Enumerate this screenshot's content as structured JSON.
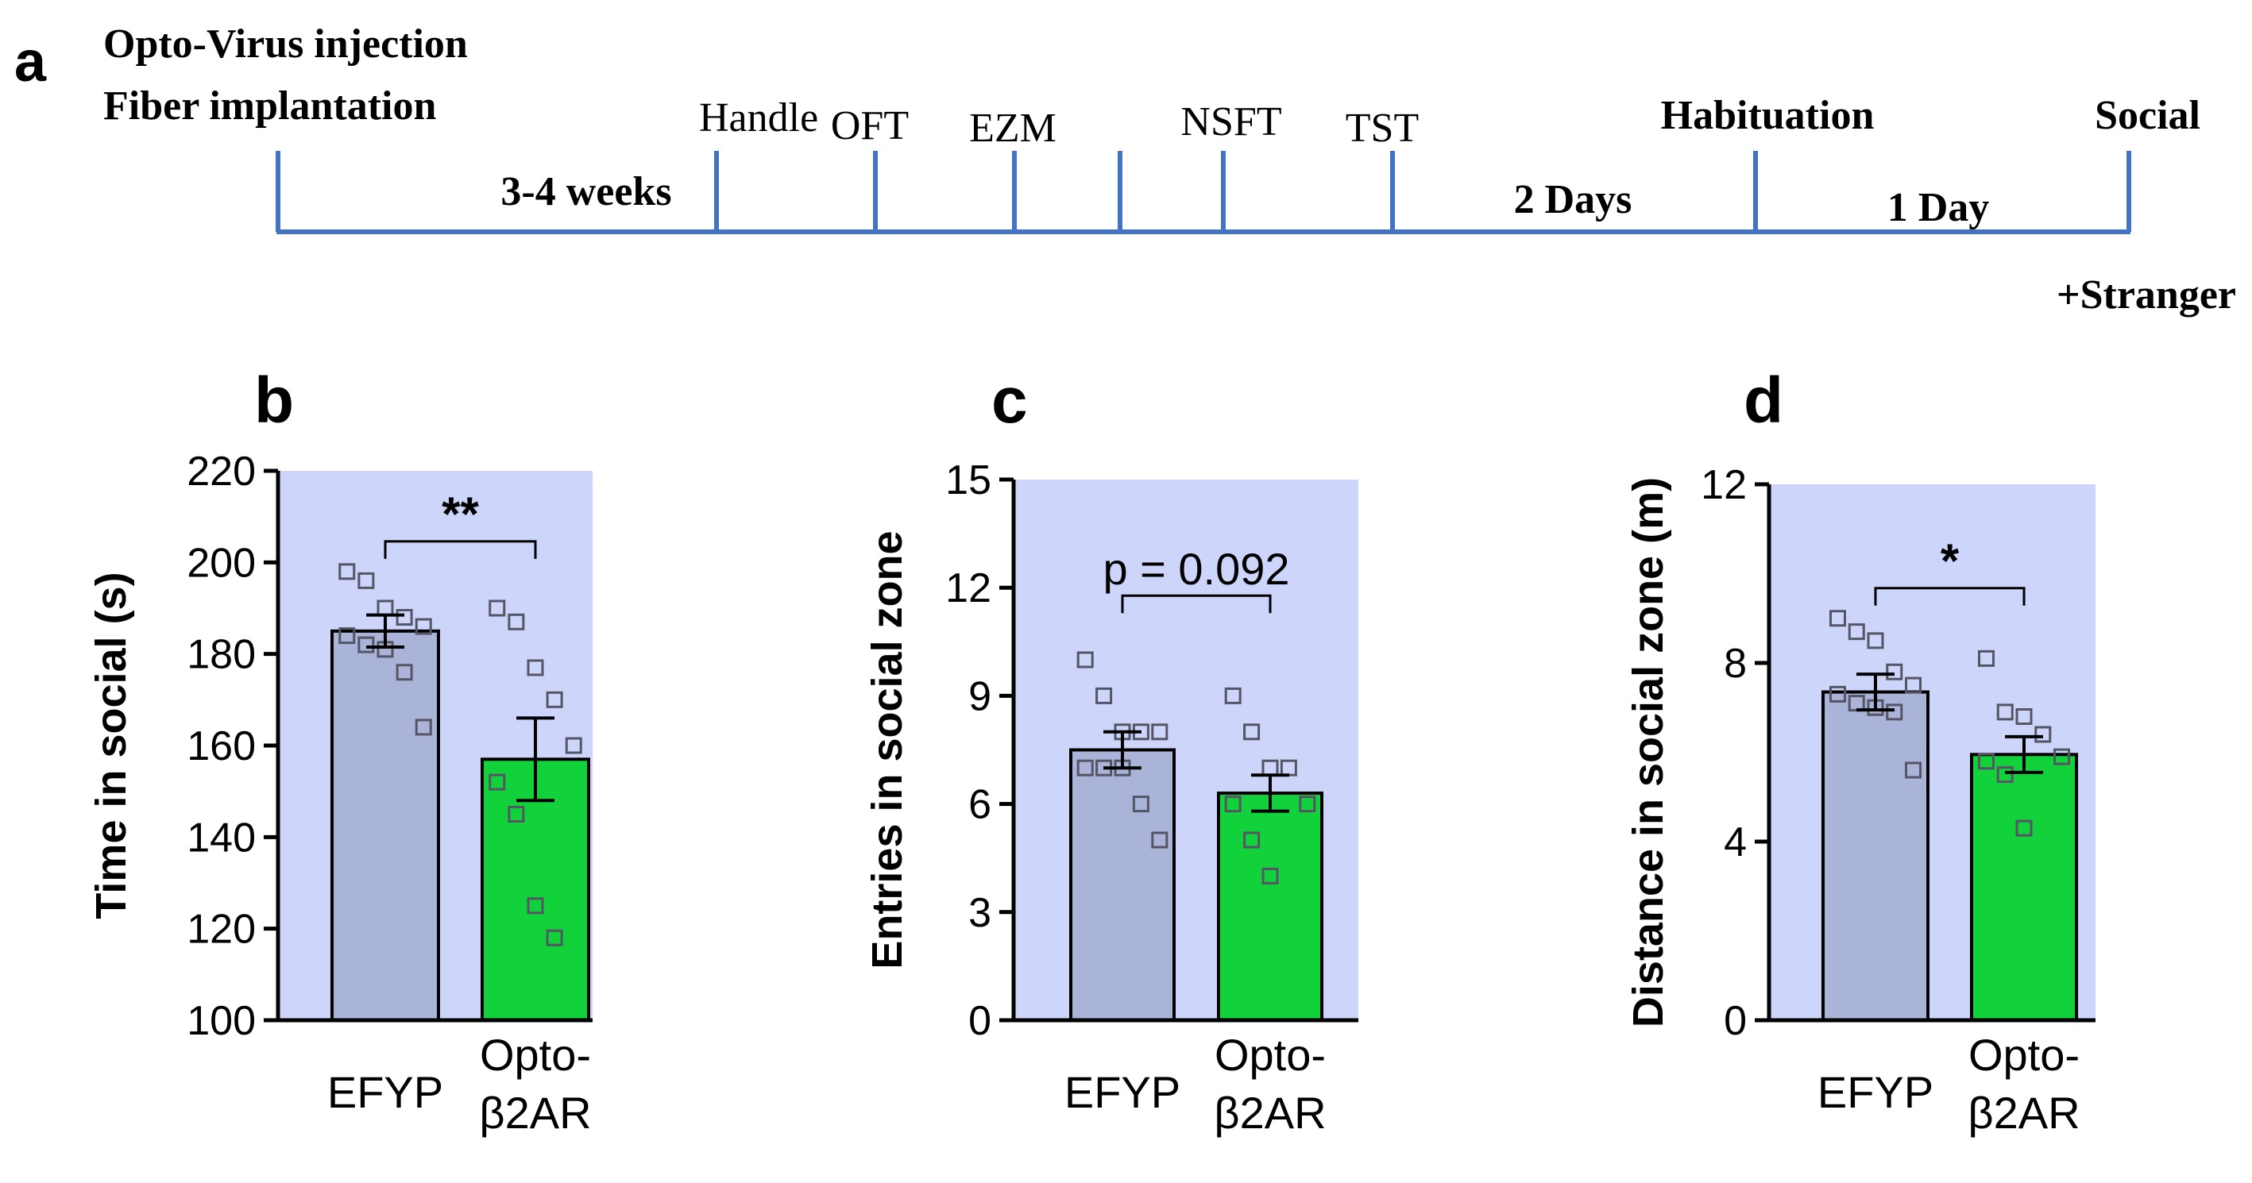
{
  "timeline": {
    "panel_letter": "a",
    "title_line1": "Opto-Virus injection",
    "title_line2": "Fiber implantation",
    "events": [
      {
        "label": "Handle",
        "bold": false
      },
      {
        "label": "OFT",
        "bold": false
      },
      {
        "label": "EZM",
        "bold": false
      },
      {
        "label": "NSFT",
        "bold": false
      },
      {
        "label": "TST",
        "bold": false
      },
      {
        "label": "Habituation",
        "bold": true
      },
      {
        "label": "Social",
        "bold": true
      }
    ],
    "durations": [
      "3-4 weeks",
      "2 Days",
      "1 Day"
    ],
    "note": "+Stranger",
    "line_color": "#4472c4"
  },
  "colors": {
    "panel_bg": "#cdd6fa",
    "efyp_bar": "#aab4d8",
    "opto_bar": "#11d23a",
    "axis": "#000000",
    "marker": "#555566"
  },
  "chart_data": [
    {
      "panel": "b",
      "type": "bar",
      "categories": [
        "EFYP",
        "Opto-β2AR"
      ],
      "category_lines": [
        [
          "EFYP"
        ],
        [
          "Opto-",
          "β2AR"
        ]
      ],
      "values": [
        185,
        157
      ],
      "sem": [
        3.5,
        9
      ],
      "points": [
        [
          198,
          196,
          190,
          188,
          186,
          184,
          182,
          181,
          176,
          164
        ],
        [
          190,
          187,
          177,
          170,
          160,
          152,
          145,
          125,
          118
        ]
      ],
      "ylabel": "Time in social (s)",
      "ylim": [
        100,
        220
      ],
      "yticks": [
        100,
        120,
        140,
        160,
        180,
        200,
        220
      ],
      "significance": "**"
    },
    {
      "panel": "c",
      "type": "bar",
      "categories": [
        "EFYP",
        "Opto-β2AR"
      ],
      "category_lines": [
        [
          "EFYP"
        ],
        [
          "Opto-",
          "β2AR"
        ]
      ],
      "values": [
        7.5,
        6.3
      ],
      "sem": [
        0.5,
        0.5
      ],
      "points": [
        [
          10,
          9,
          8,
          8,
          8,
          7,
          7,
          7,
          6,
          5
        ],
        [
          9,
          8,
          7,
          7,
          6,
          6,
          5,
          4
        ]
      ],
      "ylabel": "Entries in social zone",
      "ylim": [
        0,
        15
      ],
      "yticks": [
        0,
        3,
        6,
        9,
        12,
        15
      ],
      "significance": "p = 0.092"
    },
    {
      "panel": "d",
      "type": "bar",
      "categories": [
        "EFYP",
        "Opto-β2AR"
      ],
      "category_lines": [
        [
          "EFYP"
        ],
        [
          "Opto-",
          "β2AR"
        ]
      ],
      "values": [
        7.35,
        5.95
      ],
      "sem": [
        0.4,
        0.4
      ],
      "points": [
        [
          9.0,
          8.7,
          8.5,
          7.8,
          7.5,
          7.3,
          7.1,
          7.0,
          6.9,
          5.6
        ],
        [
          8.1,
          6.9,
          6.8,
          6.4,
          5.9,
          5.8,
          5.5,
          4.3
        ]
      ],
      "ylabel": "Distance in social zone (m)",
      "ylim": [
        0,
        12
      ],
      "yticks": [
        0,
        4,
        8,
        12
      ],
      "significance": "*"
    }
  ]
}
